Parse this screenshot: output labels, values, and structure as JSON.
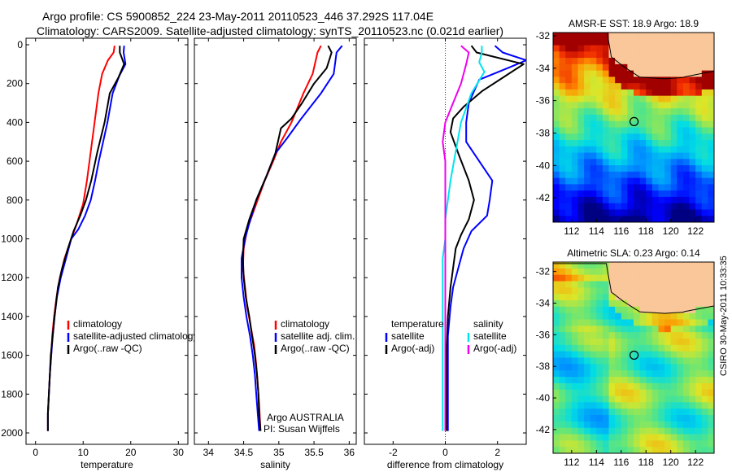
{
  "header": {
    "title_line_1": "Argo profile: CS 5900852_224 23-May-2011 20110523_446 37.292S 117.04E",
    "title_line_2": "Climatology: CARS2009. Satellite-adjusted climatology: synTS_20110523.nc (0.021d earlier)"
  },
  "footer_credit": "CSIRO 30-May-2011 10:33:35",
  "colors": {
    "climatology": "#ff0000",
    "satellite": "#0000ff",
    "argo": "#000000",
    "satellite_salinity": "#00e5ee",
    "argo_adj_salinity": "#ee00ee",
    "land": "#f9c79a"
  },
  "chart_data": [
    {
      "type": "line",
      "id": "temperature",
      "xlabel": "temperature",
      "ylabel": "",
      "xlim": [
        -2,
        32
      ],
      "ylim": [
        2050,
        0
      ],
      "x_ticks": [
        0,
        10,
        20,
        30
      ],
      "y_ticks": [
        0,
        200,
        400,
        600,
        800,
        1000,
        1200,
        1400,
        1600,
        1800,
        2000
      ],
      "y_reversed": true,
      "legend": [
        "climatology",
        "satellite-adjusted climatology",
        "Argo(..raw -QC)"
      ],
      "series": [
        {
          "name": "climatology",
          "color": "#ff0000",
          "points": [
            [
              16.6,
              5
            ],
            [
              16.4,
              40
            ],
            [
              15.2,
              80
            ],
            [
              14.0,
              150
            ],
            [
              13.2,
              250
            ],
            [
              12.4,
              400
            ],
            [
              11.6,
              550
            ],
            [
              10.8,
              700
            ],
            [
              10.0,
              820
            ],
            [
              8.7,
              920
            ],
            [
              7.5,
              1000
            ],
            [
              6.1,
              1100
            ],
            [
              5.1,
              1200
            ],
            [
              4.4,
              1300
            ],
            [
              3.9,
              1400
            ],
            [
              3.5,
              1500
            ],
            [
              3.3,
              1600
            ],
            [
              3.0,
              1700
            ],
            [
              2.8,
              1800
            ],
            [
              2.6,
              1900
            ],
            [
              2.6,
              1990
            ]
          ]
        },
        {
          "name": "satellite-adjusted climatology",
          "color": "#0000ff",
          "points": [
            [
              18.6,
              5
            ],
            [
              18.5,
              40
            ],
            [
              18.9,
              100
            ],
            [
              17.6,
              160
            ],
            [
              16.2,
              250
            ],
            [
              15.1,
              400
            ],
            [
              14.2,
              500
            ],
            [
              13.3,
              600
            ],
            [
              12.5,
              700
            ],
            [
              11.6,
              800
            ],
            [
              10.4,
              880
            ],
            [
              9.0,
              950
            ],
            [
              7.5,
              1000
            ],
            [
              6.4,
              1100
            ],
            [
              5.3,
              1200
            ],
            [
              4.5,
              1300
            ],
            [
              4.0,
              1400
            ],
            [
              3.6,
              1500
            ],
            [
              3.3,
              1600
            ],
            [
              3.0,
              1700
            ],
            [
              2.8,
              1800
            ],
            [
              2.6,
              1900
            ],
            [
              2.6,
              1990
            ]
          ]
        },
        {
          "name": "Argo(..raw -QC)",
          "color": "#000000",
          "points": [
            [
              17.7,
              5
            ],
            [
              17.7,
              40
            ],
            [
              18.6,
              100
            ],
            [
              17.4,
              170
            ],
            [
              15.6,
              250
            ],
            [
              14.5,
              400
            ],
            [
              13.0,
              550
            ],
            [
              11.7,
              700
            ],
            [
              10.6,
              800
            ],
            [
              9.4,
              880
            ],
            [
              8.0,
              960
            ],
            [
              6.8,
              1050
            ],
            [
              5.6,
              1150
            ],
            [
              4.7,
              1250
            ],
            [
              4.0,
              1400
            ],
            [
              3.6,
              1500
            ],
            [
              3.2,
              1600
            ],
            [
              3.0,
              1700
            ],
            [
              2.8,
              1800
            ],
            [
              2.6,
              1900
            ],
            [
              2.6,
              1990
            ]
          ]
        }
      ]
    },
    {
      "type": "line",
      "id": "salinity",
      "xlabel": "salinity",
      "ylabel": "",
      "xlim": [
        33.8,
        36.1
      ],
      "ylim": [
        2050,
        0
      ],
      "x_ticks": [
        34,
        34.5,
        35,
        35.5,
        36
      ],
      "y_reversed": true,
      "legend": [
        "climatology",
        "satellite adj. clim.",
        "Argo(..raw -QC)"
      ],
      "annotation": [
        "Argo AUSTRALIA",
        "PI: Susan Wijffels"
      ],
      "series": [
        {
          "name": "climatology",
          "color": "#ff0000",
          "points": [
            [
              35.6,
              5
            ],
            [
              35.55,
              40
            ],
            [
              35.48,
              150
            ],
            [
              35.35,
              250
            ],
            [
              35.18,
              400
            ],
            [
              35.03,
              500
            ],
            [
              34.92,
              600
            ],
            [
              34.8,
              700
            ],
            [
              34.65,
              850
            ],
            [
              34.55,
              950
            ],
            [
              34.5,
              1050
            ],
            [
              34.49,
              1150
            ],
            [
              34.52,
              1250
            ],
            [
              34.55,
              1350
            ],
            [
              34.6,
              1450
            ],
            [
              34.65,
              1550
            ],
            [
              34.68,
              1650
            ],
            [
              34.7,
              1750
            ],
            [
              34.72,
              1850
            ],
            [
              34.74,
              1990
            ]
          ]
        },
        {
          "name": "satellite adj. clim.",
          "color": "#0000ff",
          "points": [
            [
              35.9,
              5
            ],
            [
              35.82,
              40
            ],
            [
              35.78,
              150
            ],
            [
              35.6,
              250
            ],
            [
              35.32,
              380
            ],
            [
              35.12,
              480
            ],
            [
              34.95,
              560
            ],
            [
              34.82,
              680
            ],
            [
              34.68,
              800
            ],
            [
              34.58,
              920
            ],
            [
              34.52,
              1000
            ],
            [
              34.47,
              1100
            ],
            [
              34.47,
              1200
            ],
            [
              34.5,
              1300
            ],
            [
              34.54,
              1400
            ],
            [
              34.59,
              1500
            ],
            [
              34.63,
              1600
            ],
            [
              34.66,
              1700
            ],
            [
              34.68,
              1800
            ],
            [
              34.7,
              1900
            ],
            [
              34.72,
              1990
            ]
          ]
        },
        {
          "name": "Argo(..raw -QC)",
          "color": "#000000",
          "points": [
            [
              35.7,
              5
            ],
            [
              35.75,
              40
            ],
            [
              35.68,
              120
            ],
            [
              35.5,
              200
            ],
            [
              35.33,
              300
            ],
            [
              35.18,
              380
            ],
            [
              35.03,
              430
            ],
            [
              34.95,
              560
            ],
            [
              34.82,
              680
            ],
            [
              34.68,
              800
            ],
            [
              34.58,
              900
            ],
            [
              34.5,
              1000
            ],
            [
              34.49,
              1100
            ],
            [
              34.5,
              1200
            ],
            [
              34.53,
              1300
            ],
            [
              34.58,
              1400
            ],
            [
              34.62,
              1500
            ],
            [
              34.66,
              1600
            ],
            [
              34.69,
              1700
            ],
            [
              34.71,
              1800
            ],
            [
              34.72,
              1900
            ],
            [
              34.74,
              1990
            ]
          ]
        }
      ]
    },
    {
      "type": "line",
      "id": "difference",
      "xlabel": "difference from climatology",
      "ylabel": "",
      "xlim": [
        -3.1,
        3.1
      ],
      "ylim": [
        2050,
        0
      ],
      "x_ticks": [
        -2,
        0,
        2
      ],
      "y_reversed": true,
      "zero_line": 0,
      "legend_headers": [
        "temperature",
        "salinity"
      ],
      "legend": [
        "satellite",
        "Argo(-adj)",
        "satellite",
        "Argo(-adj)"
      ],
      "series": [
        {
          "name": "satellite",
          "group": "temperature",
          "color": "#0000ff",
          "points": [
            [
              1.9,
              5
            ],
            [
              2.2,
              40
            ],
            [
              3.1,
              80
            ],
            [
              2.4,
              120
            ],
            [
              1.3,
              180
            ],
            [
              0.9,
              300
            ],
            [
              0.8,
              400
            ],
            [
              0.8,
              500
            ],
            [
              1.3,
              600
            ],
            [
              1.8,
              700
            ],
            [
              1.7,
              800
            ],
            [
              1.6,
              880
            ],
            [
              1.0,
              960
            ],
            [
              0.7,
              1050
            ],
            [
              0.5,
              1150
            ],
            [
              0.3,
              1250
            ],
            [
              0.2,
              1350
            ],
            [
              0.1,
              1500
            ],
            [
              0.1,
              1700
            ],
            [
              0.1,
              1990
            ]
          ]
        },
        {
          "name": "Argo(-adj)",
          "group": "temperature",
          "color": "#000000",
          "points": [
            [
              1.0,
              5
            ],
            [
              1.2,
              40
            ],
            [
              3.0,
              100
            ],
            [
              2.2,
              170
            ],
            [
              1.4,
              240
            ],
            [
              0.7,
              320
            ],
            [
              0.3,
              380
            ],
            [
              0.2,
              450
            ],
            [
              0.5,
              560
            ],
            [
              0.9,
              700
            ],
            [
              1.1,
              800
            ],
            [
              0.9,
              900
            ],
            [
              0.6,
              980
            ],
            [
              0.4,
              1050
            ],
            [
              0.3,
              1150
            ],
            [
              0.2,
              1250
            ],
            [
              0.1,
              1400
            ],
            [
              0.05,
              1600
            ],
            [
              0.05,
              1800
            ],
            [
              0.05,
              1990
            ]
          ]
        },
        {
          "name": "satellite",
          "group": "salinity",
          "color": "#00e5ee",
          "points": [
            [
              1.4,
              5
            ],
            [
              1.4,
              40
            ],
            [
              1.3,
              90
            ],
            [
              1.5,
              140
            ],
            [
              1.0,
              250
            ],
            [
              0.6,
              400
            ],
            [
              0.4,
              550
            ],
            [
              0.2,
              700
            ],
            [
              0.1,
              800
            ],
            [
              0.0,
              900
            ],
            [
              0.0,
              1000
            ],
            [
              -0.1,
              1100
            ],
            [
              -0.1,
              1300
            ],
            [
              -0.1,
              1500
            ],
            [
              -0.1,
              1700
            ],
            [
              -0.1,
              1990
            ]
          ]
        },
        {
          "name": "Argo(-adj)",
          "group": "salinity",
          "color": "#ee00ee",
          "points": [
            [
              0.6,
              5
            ],
            [
              0.9,
              40
            ],
            [
              0.8,
              100
            ],
            [
              0.6,
              200
            ],
            [
              0.3,
              300
            ],
            [
              0.0,
              400
            ],
            [
              -0.1,
              500
            ],
            [
              0.0,
              600
            ],
            [
              0.0,
              700
            ],
            [
              0.0,
              800
            ],
            [
              0.0,
              900
            ],
            [
              0.0,
              1000
            ],
            [
              0.0,
              1200
            ],
            [
              0.0,
              1400
            ],
            [
              0.0,
              1600
            ],
            [
              0.0,
              1800
            ],
            [
              0.0,
              1990
            ]
          ]
        }
      ]
    },
    {
      "type": "heatmap",
      "id": "sst-map",
      "title": "AMSR-E SST: 18.9 Argo: 18.9",
      "xlim": [
        110.5,
        123.5
      ],
      "ylim": [
        -43.5,
        -31.8
      ],
      "x_ticks": [
        112,
        114,
        116,
        118,
        120,
        122
      ],
      "y_ticks": [
        -32,
        -34,
        -36,
        -38,
        -40,
        -42
      ],
      "marker": {
        "lon": 117.04,
        "lat": -37.292
      }
    },
    {
      "type": "heatmap",
      "id": "sla-map",
      "title": "Altimetric SLA: 0.23 Argo: 0.14",
      "xlim": [
        110.5,
        123.5
      ],
      "ylim": [
        -43.5,
        -31.4
      ],
      "x_ticks": [
        112,
        114,
        116,
        118,
        120,
        122
      ],
      "y_ticks": [
        -32,
        -34,
        -36,
        -38,
        -40,
        -42
      ],
      "marker": {
        "lon": 117.04,
        "lat": -37.292
      }
    }
  ]
}
